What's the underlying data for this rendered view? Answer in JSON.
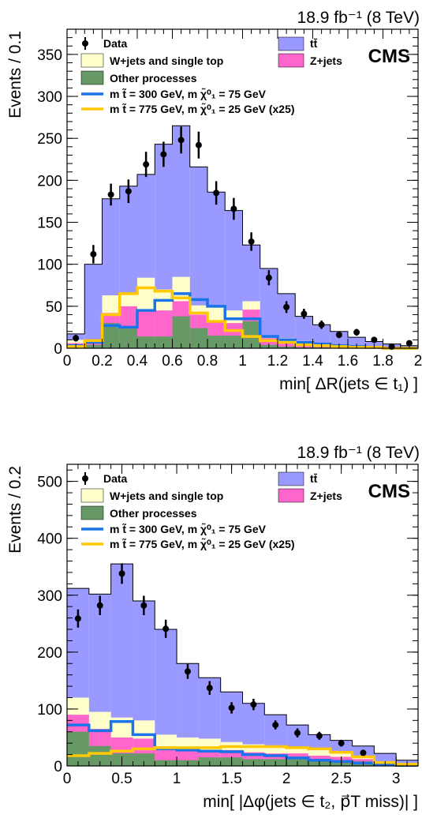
{
  "chart_data": [
    {
      "type": "bar",
      "experiment": "CMS",
      "lumi_text": "18.9 fb⁻¹ (8 TeV)",
      "xlabel": "min[ ΔR(jets ∈ t₁) ]",
      "ylabel": "Events / 0.1",
      "xlim": [
        0,
        2
      ],
      "ylim": [
        0,
        380
      ],
      "x_ticks": [
        "0",
        "0.2",
        "0.4",
        "0.6",
        "0.8",
        "1",
        "1.2",
        "1.4",
        "1.6",
        "1.8",
        "2"
      ],
      "y_ticks": [
        "0",
        "50",
        "100",
        "150",
        "200",
        "250",
        "300",
        "350"
      ],
      "bin_edges": [
        0,
        0.1,
        0.2,
        0.3,
        0.4,
        0.5,
        0.6,
        0.7,
        0.8,
        0.9,
        1.0,
        1.1,
        1.2,
        1.3,
        1.4,
        1.5,
        1.6,
        1.7,
        1.8,
        1.9,
        2.0
      ],
      "legend": {
        "data": "Data",
        "ttbar": "tt̄",
        "wjets": "W+jets and single top",
        "zjets": "Z+jets",
        "other": "Other processes",
        "sig1": "m t̃ = 300 GeV, m χ̃⁰₁ = 75 GeV",
        "sig2": "m t̃ = 775 GeV, m χ̃⁰₁ = 25 GeV (x25)"
      },
      "colors": {
        "ttbar": "#9999ff",
        "wjets": "#ffffcc",
        "zjets": "#ff66cc",
        "other": "#669966",
        "sig1": "#1a73e8",
        "sig2": "#ffc800"
      },
      "stack_cumulative": {
        "other": [
          4,
          4,
          30,
          25,
          14,
          14,
          38,
          24,
          15,
          15,
          32,
          4,
          2,
          1,
          1,
          0,
          0,
          0,
          0,
          0
        ],
        "zjets": [
          6,
          6,
          42,
          50,
          45,
          45,
          56,
          40,
          32,
          30,
          46,
          12,
          9,
          6,
          4,
          2,
          1,
          1,
          0,
          0
        ],
        "wjets": [
          10,
          10,
          63,
          64,
          84,
          70,
          85,
          51,
          50,
          45,
          56,
          15,
          12,
          9,
          6,
          4,
          2,
          1,
          0,
          0
        ],
        "ttbar": [
          17,
          100,
          178,
          193,
          207,
          243,
          265,
          216,
          186,
          164,
          123,
          95,
          65,
          38,
          28,
          20,
          13,
          8,
          5,
          3
        ]
      },
      "signals": [
        {
          "name": "sig1",
          "values": [
            3,
            7,
            27,
            25,
            45,
            57,
            65,
            58,
            50,
            35,
            35,
            14,
            10,
            7,
            5,
            3,
            2,
            1,
            0,
            0
          ]
        },
        {
          "name": "sig2",
          "values": [
            2,
            9,
            40,
            65,
            72,
            68,
            60,
            42,
            32,
            21,
            14,
            9,
            7,
            4,
            3,
            2,
            1,
            1,
            0,
            0
          ]
        }
      ],
      "data_points": [
        {
          "x": 0.05,
          "y": 12,
          "err": 4
        },
        {
          "x": 0.15,
          "y": 112,
          "err": 11
        },
        {
          "x": 0.25,
          "y": 183,
          "err": 13
        },
        {
          "x": 0.35,
          "y": 187,
          "err": 14
        },
        {
          "x": 0.45,
          "y": 219,
          "err": 15
        },
        {
          "x": 0.55,
          "y": 231,
          "err": 15
        },
        {
          "x": 0.65,
          "y": 248,
          "err": 16
        },
        {
          "x": 0.75,
          "y": 242,
          "err": 16
        },
        {
          "x": 0.85,
          "y": 185,
          "err": 14
        },
        {
          "x": 0.95,
          "y": 166,
          "err": 13
        },
        {
          "x": 1.05,
          "y": 127,
          "err": 11
        },
        {
          "x": 1.15,
          "y": 84,
          "err": 9
        },
        {
          "x": 1.25,
          "y": 49,
          "err": 7
        },
        {
          "x": 1.35,
          "y": 41,
          "err": 6
        },
        {
          "x": 1.45,
          "y": 28,
          "err": 5
        },
        {
          "x": 1.55,
          "y": 16,
          "err": 4
        },
        {
          "x": 1.65,
          "y": 19,
          "err": 4
        },
        {
          "x": 1.75,
          "y": 10,
          "err": 3
        },
        {
          "x": 1.85,
          "y": 2,
          "err": 1
        },
        {
          "x": 1.95,
          "y": 6,
          "err": 2
        }
      ]
    },
    {
      "type": "bar",
      "experiment": "CMS",
      "lumi_text": "18.9 fb⁻¹ (8 TeV)",
      "xlabel": "min[ |Δφ(jets ∈ t₂, p⃗T miss)| ]",
      "ylabel": "Events / 0.2",
      "xlim": [
        0,
        3.2
      ],
      "ylim": [
        0,
        530
      ],
      "x_ticks": [
        "0",
        "0.5",
        "1",
        "1.5",
        "2",
        "2.5",
        "3"
      ],
      "y_ticks": [
        "0",
        "100",
        "200",
        "300",
        "400",
        "500"
      ],
      "bin_edges": [
        0,
        0.2,
        0.4,
        0.6,
        0.8,
        1.0,
        1.2,
        1.4,
        1.6,
        1.8,
        2.0,
        2.2,
        2.4,
        2.6,
        2.8,
        3.0,
        3.2
      ],
      "legend": {
        "data": "Data",
        "ttbar": "tt̄",
        "wjets": "W+jets and single top",
        "zjets": "Z+jets",
        "other": "Other processes",
        "sig1": "m t̃ = 300 GeV, m χ̃⁰₁ = 75 GeV",
        "sig2": "m t̃ = 775 GeV, m χ̃⁰₁ = 25 GeV (x25)"
      },
      "colors": {
        "ttbar": "#9999ff",
        "wjets": "#ffffcc",
        "zjets": "#ff66cc",
        "other": "#669966",
        "sig1": "#1a73e8",
        "sig2": "#ffc800"
      },
      "stack_cumulative": {
        "other": [
          60,
          35,
          22,
          22,
          10,
          10,
          15,
          15,
          12,
          12,
          12,
          10,
          10,
          8,
          4,
          2
        ],
        "zjets": [
          90,
          65,
          50,
          48,
          32,
          30,
          28,
          28,
          24,
          22,
          22,
          18,
          16,
          12,
          6,
          3
        ],
        "wjets": [
          120,
          95,
          85,
          80,
          55,
          50,
          48,
          42,
          38,
          35,
          32,
          28,
          22,
          16,
          8,
          4
        ],
        "ttbar": [
          312,
          302,
          355,
          290,
          240,
          180,
          155,
          130,
          110,
          90,
          72,
          55,
          45,
          35,
          22,
          10
        ]
      },
      "signals": [
        {
          "name": "sig1",
          "values": [
            72,
            62,
            78,
            55,
            30,
            28,
            26,
            25,
            20,
            18,
            14,
            10,
            8,
            5,
            3,
            1
          ]
        },
        {
          "name": "sig2",
          "values": [
            18,
            22,
            26,
            30,
            32,
            32,
            32,
            34,
            34,
            34,
            32,
            30,
            24,
            16,
            6,
            3
          ]
        }
      ],
      "data_points": [
        {
          "x": 0.1,
          "y": 259,
          "err": 16
        },
        {
          "x": 0.3,
          "y": 282,
          "err": 17
        },
        {
          "x": 0.5,
          "y": 338,
          "err": 18
        },
        {
          "x": 0.7,
          "y": 282,
          "err": 17
        },
        {
          "x": 0.9,
          "y": 241,
          "err": 16
        },
        {
          "x": 1.1,
          "y": 166,
          "err": 13
        },
        {
          "x": 1.3,
          "y": 137,
          "err": 12
        },
        {
          "x": 1.5,
          "y": 102,
          "err": 10
        },
        {
          "x": 1.7,
          "y": 108,
          "err": 10
        },
        {
          "x": 1.9,
          "y": 72,
          "err": 8
        },
        {
          "x": 2.1,
          "y": 58,
          "err": 8
        },
        {
          "x": 2.3,
          "y": 53,
          "err": 7
        },
        {
          "x": 2.5,
          "y": 40,
          "err": 6
        },
        {
          "x": 2.7,
          "y": 23,
          "err": 5
        }
      ]
    }
  ]
}
